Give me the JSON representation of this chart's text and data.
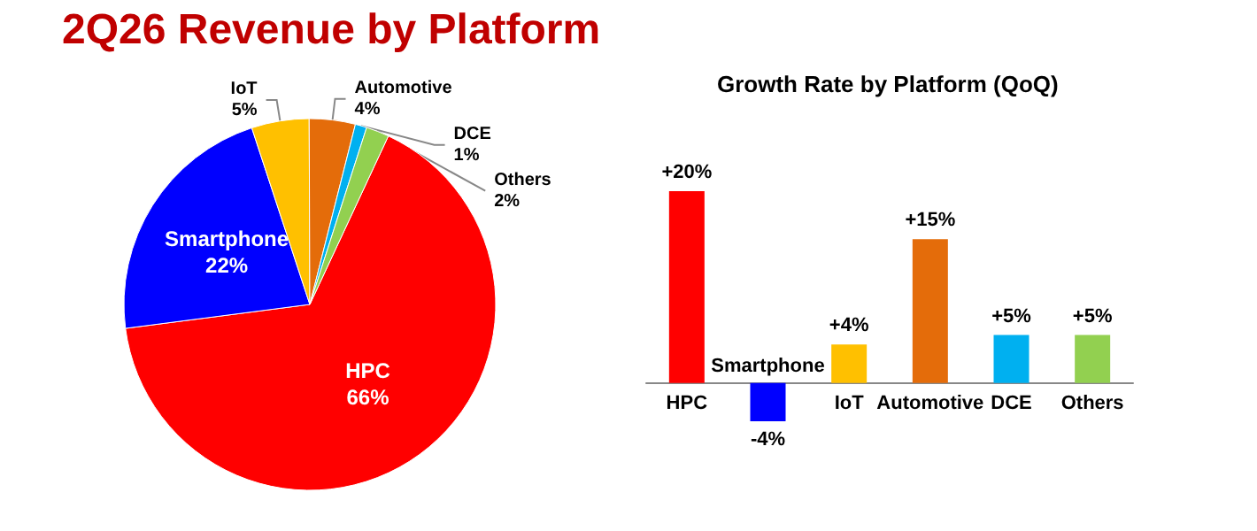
{
  "chart_data": [
    {
      "type": "pie",
      "title": "2Q26 Revenue by Platform",
      "categories": [
        "HPC",
        "Smartphone",
        "IoT",
        "Automotive",
        "DCE",
        "Others"
      ],
      "values": [
        66,
        22,
        5,
        4,
        1,
        2
      ],
      "value_labels": [
        "66%",
        "22%",
        "5%",
        "4%",
        "1%",
        "2%"
      ],
      "colors": [
        "#ff0000",
        "#0000ff",
        "#ffc000",
        "#e46c0a",
        "#00b0f0",
        "#92d050"
      ]
    },
    {
      "type": "bar",
      "title": "Growth Rate by Platform (QoQ)",
      "categories": [
        "HPC",
        "Smartphone",
        "IoT",
        "Automotive",
        "DCE",
        "Others"
      ],
      "values": [
        20,
        -4,
        4,
        15,
        5,
        5
      ],
      "value_labels": [
        "+20%",
        "-4%",
        "+4%",
        "+15%",
        "+5%",
        "+5%"
      ],
      "colors": [
        "#ff0000",
        "#0000ff",
        "#ffc000",
        "#e46c0a",
        "#00b0f0",
        "#92d050"
      ]
    }
  ]
}
